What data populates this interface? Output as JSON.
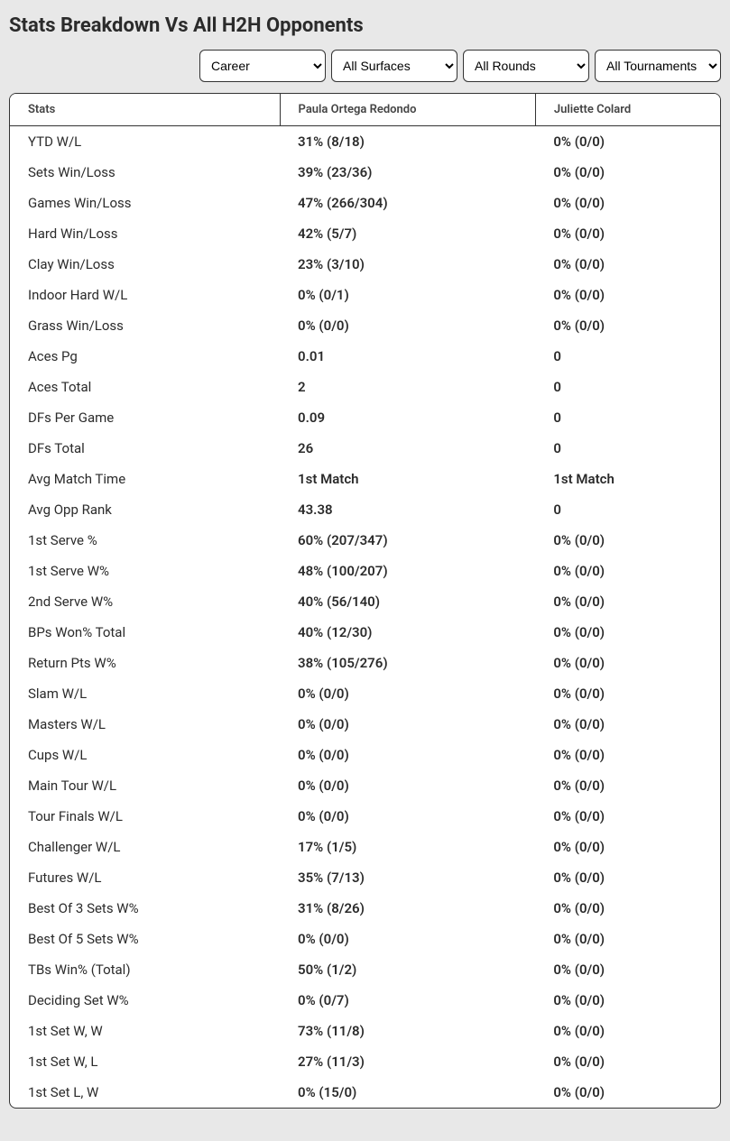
{
  "title": "Stats Breakdown Vs All H2H Opponents",
  "filters": {
    "career": "Career",
    "surfaces": "All Surfaces",
    "rounds": "All Rounds",
    "tournaments": "All Tournaments"
  },
  "columns": {
    "stats": "Stats",
    "player1": "Paula Ortega Redondo",
    "player2": "Juliette Colard"
  },
  "rows": [
    {
      "stat": "YTD W/L",
      "p1": "31% (8/18)",
      "p2": "0% (0/0)"
    },
    {
      "stat": "Sets Win/Loss",
      "p1": "39% (23/36)",
      "p2": "0% (0/0)"
    },
    {
      "stat": "Games Win/Loss",
      "p1": "47% (266/304)",
      "p2": "0% (0/0)"
    },
    {
      "stat": "Hard Win/Loss",
      "p1": "42% (5/7)",
      "p2": "0% (0/0)"
    },
    {
      "stat": "Clay Win/Loss",
      "p1": "23% (3/10)",
      "p2": "0% (0/0)"
    },
    {
      "stat": "Indoor Hard W/L",
      "p1": "0% (0/1)",
      "p2": "0% (0/0)"
    },
    {
      "stat": "Grass Win/Loss",
      "p1": "0% (0/0)",
      "p2": "0% (0/0)"
    },
    {
      "stat": "Aces Pg",
      "p1": "0.01",
      "p2": "0"
    },
    {
      "stat": "Aces Total",
      "p1": "2",
      "p2": "0"
    },
    {
      "stat": "DFs Per Game",
      "p1": "0.09",
      "p2": "0"
    },
    {
      "stat": "DFs Total",
      "p1": "26",
      "p2": "0"
    },
    {
      "stat": "Avg Match Time",
      "p1": "1st Match",
      "p2": "1st Match"
    },
    {
      "stat": "Avg Opp Rank",
      "p1": "43.38",
      "p2": "0"
    },
    {
      "stat": "1st Serve %",
      "p1": "60% (207/347)",
      "p2": "0% (0/0)"
    },
    {
      "stat": "1st Serve W%",
      "p1": "48% (100/207)",
      "p2": "0% (0/0)"
    },
    {
      "stat": "2nd Serve W%",
      "p1": "40% (56/140)",
      "p2": "0% (0/0)"
    },
    {
      "stat": "BPs Won% Total",
      "p1": "40% (12/30)",
      "p2": "0% (0/0)"
    },
    {
      "stat": "Return Pts W%",
      "p1": "38% (105/276)",
      "p2": "0% (0/0)"
    },
    {
      "stat": "Slam W/L",
      "p1": "0% (0/0)",
      "p2": "0% (0/0)"
    },
    {
      "stat": "Masters W/L",
      "p1": "0% (0/0)",
      "p2": "0% (0/0)"
    },
    {
      "stat": "Cups W/L",
      "p1": "0% (0/0)",
      "p2": "0% (0/0)"
    },
    {
      "stat": "Main Tour W/L",
      "p1": "0% (0/0)",
      "p2": "0% (0/0)"
    },
    {
      "stat": "Tour Finals W/L",
      "p1": "0% (0/0)",
      "p2": "0% (0/0)"
    },
    {
      "stat": "Challenger W/L",
      "p1": "17% (1/5)",
      "p2": "0% (0/0)"
    },
    {
      "stat": "Futures W/L",
      "p1": "35% (7/13)",
      "p2": "0% (0/0)"
    },
    {
      "stat": "Best Of 3 Sets W%",
      "p1": "31% (8/26)",
      "p2": "0% (0/0)"
    },
    {
      "stat": "Best Of 5 Sets W%",
      "p1": "0% (0/0)",
      "p2": "0% (0/0)"
    },
    {
      "stat": "TBs Win% (Total)",
      "p1": "50% (1/2)",
      "p2": "0% (0/0)"
    },
    {
      "stat": "Deciding Set W%",
      "p1": "0% (0/7)",
      "p2": "0% (0/0)"
    },
    {
      "stat": "1st Set W, W",
      "p1": "73% (11/8)",
      "p2": "0% (0/0)"
    },
    {
      "stat": "1st Set W, L",
      "p1": "27% (11/3)",
      "p2": "0% (0/0)"
    },
    {
      "stat": "1st Set L, W",
      "p1": "0% (15/0)",
      "p2": "0% (0/0)"
    }
  ],
  "colors": {
    "page_bg": "#e8e8e8",
    "card_bg": "#ffffff",
    "border": "#333333",
    "text": "#2b2b2b",
    "header_text": "#444444"
  }
}
